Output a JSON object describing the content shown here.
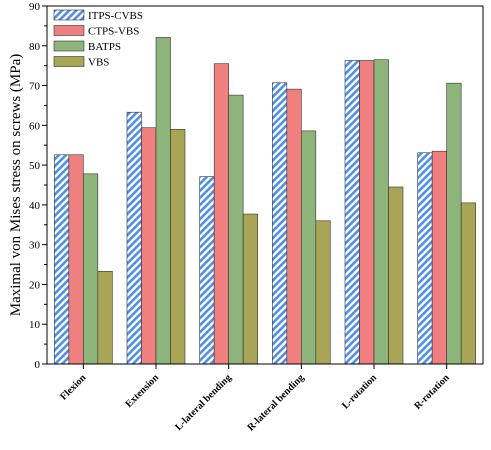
{
  "chart_data": {
    "type": "bar",
    "title": "",
    "xlabel": "",
    "ylabel": "Maximal von Mises stress on screws (MPa)",
    "ylim": [
      0,
      90
    ],
    "yticks": [
      0,
      10,
      20,
      30,
      40,
      50,
      60,
      70,
      80,
      90
    ],
    "grid": false,
    "legend_position": "top-left",
    "categories": [
      "Flexion",
      "Extension",
      "L-lateral bending",
      "R-lateral bending",
      "L-rotation",
      "R-rotation"
    ],
    "series": [
      {
        "name": "ITPS-CVBS",
        "color": "#4F8FE6",
        "pattern": "hatch",
        "values": [
          52.6,
          63.3,
          47.1,
          70.7,
          76.3,
          53.1
        ]
      },
      {
        "name": "CTPS-VBS",
        "color": "#F08080",
        "pattern": "solid",
        "values": [
          52.6,
          59.4,
          75.5,
          69.1,
          76.3,
          53.5
        ]
      },
      {
        "name": "BATPS",
        "color": "#8DB47A",
        "pattern": "solid",
        "values": [
          47.8,
          82.1,
          67.6,
          58.6,
          76.5,
          70.6
        ]
      },
      {
        "name": "VBS",
        "color": "#A8A556",
        "pattern": "solid",
        "values": [
          23.3,
          59.0,
          37.7,
          36.0,
          44.5,
          40.5
        ]
      }
    ]
  }
}
